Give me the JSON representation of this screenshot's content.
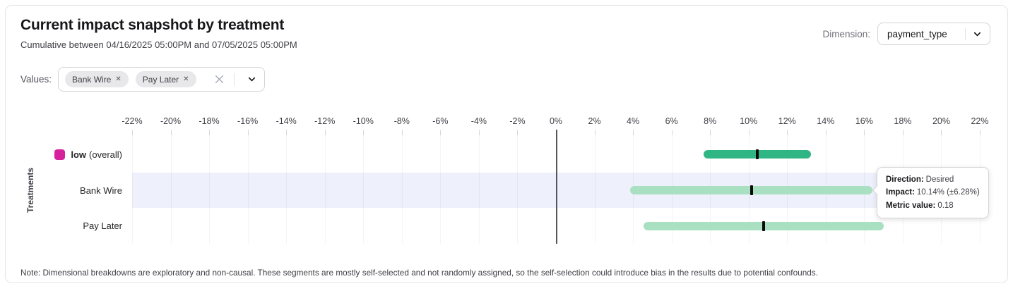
{
  "header": {
    "title": "Current impact snapshot by treatment",
    "subtitle": "Cumulative between 04/16/2025 05:00PM and 07/05/2025 05:00PM",
    "dimension_label": "Dimension:",
    "dimension_value": "payment_type"
  },
  "filters": {
    "values_label": "Values:",
    "chips": [
      {
        "label": "Bank Wire",
        "remove_icon": "✕"
      },
      {
        "label": "Pay Later",
        "remove_icon": "✕"
      }
    ]
  },
  "chart_data": {
    "type": "bar",
    "variant": "horizontal-confidence-interval",
    "title": "Current impact snapshot by treatment",
    "ylabel": "Treatments",
    "xlim": [
      -22,
      22
    ],
    "grid": true,
    "x_tick_values": [
      -22,
      -20,
      -18,
      -16,
      -14,
      -12,
      -10,
      -8,
      -6,
      -4,
      -2,
      0,
      2,
      4,
      6,
      8,
      10,
      12,
      14,
      16,
      18,
      20,
      22
    ],
    "x_tick_labels": [
      "-22%",
      "-20%",
      "-18%",
      "-16%",
      "-14%",
      "-12%",
      "-10%",
      "-8%",
      "-6%",
      "-4%",
      "-2%",
      "0%",
      "2%",
      "4%",
      "6%",
      "8%",
      "10%",
      "12%",
      "14%",
      "16%",
      "18%",
      "20%",
      "22%"
    ],
    "highlight_band_color": "#eef0fb",
    "zero_line_color": "#55555e",
    "marker_color": "#0a0a0a",
    "rows": [
      {
        "label": "low",
        "suffix": "(overall)",
        "impact_pct": 10.45,
        "ci_pct": 2.78,
        "bar_color": "#30b584",
        "legend_color": "#d6219c",
        "highlighted": false
      },
      {
        "label": "Bank Wire",
        "suffix": "",
        "impact_pct": 10.14,
        "ci_pct": 6.28,
        "bar_color": "#a9e0c2",
        "highlighted": true
      },
      {
        "label": "Pay Later",
        "suffix": "",
        "impact_pct": 10.78,
        "ci_pct": 6.25,
        "bar_color": "#a9e0c2",
        "highlighted": false
      }
    ]
  },
  "tooltip": {
    "rows": [
      {
        "label": "Direction:",
        "value": "Desired"
      },
      {
        "label": "Impact:",
        "value": "10.14% (±6.28%)"
      },
      {
        "label": "Metric value:",
        "value": "0.18"
      }
    ]
  },
  "note": "Note: Dimensional breakdowns are exploratory and non-causal. These segments are mostly self-selected and not randomly assigned, so the self-selection could introduce bias in the results due to potential confounds."
}
